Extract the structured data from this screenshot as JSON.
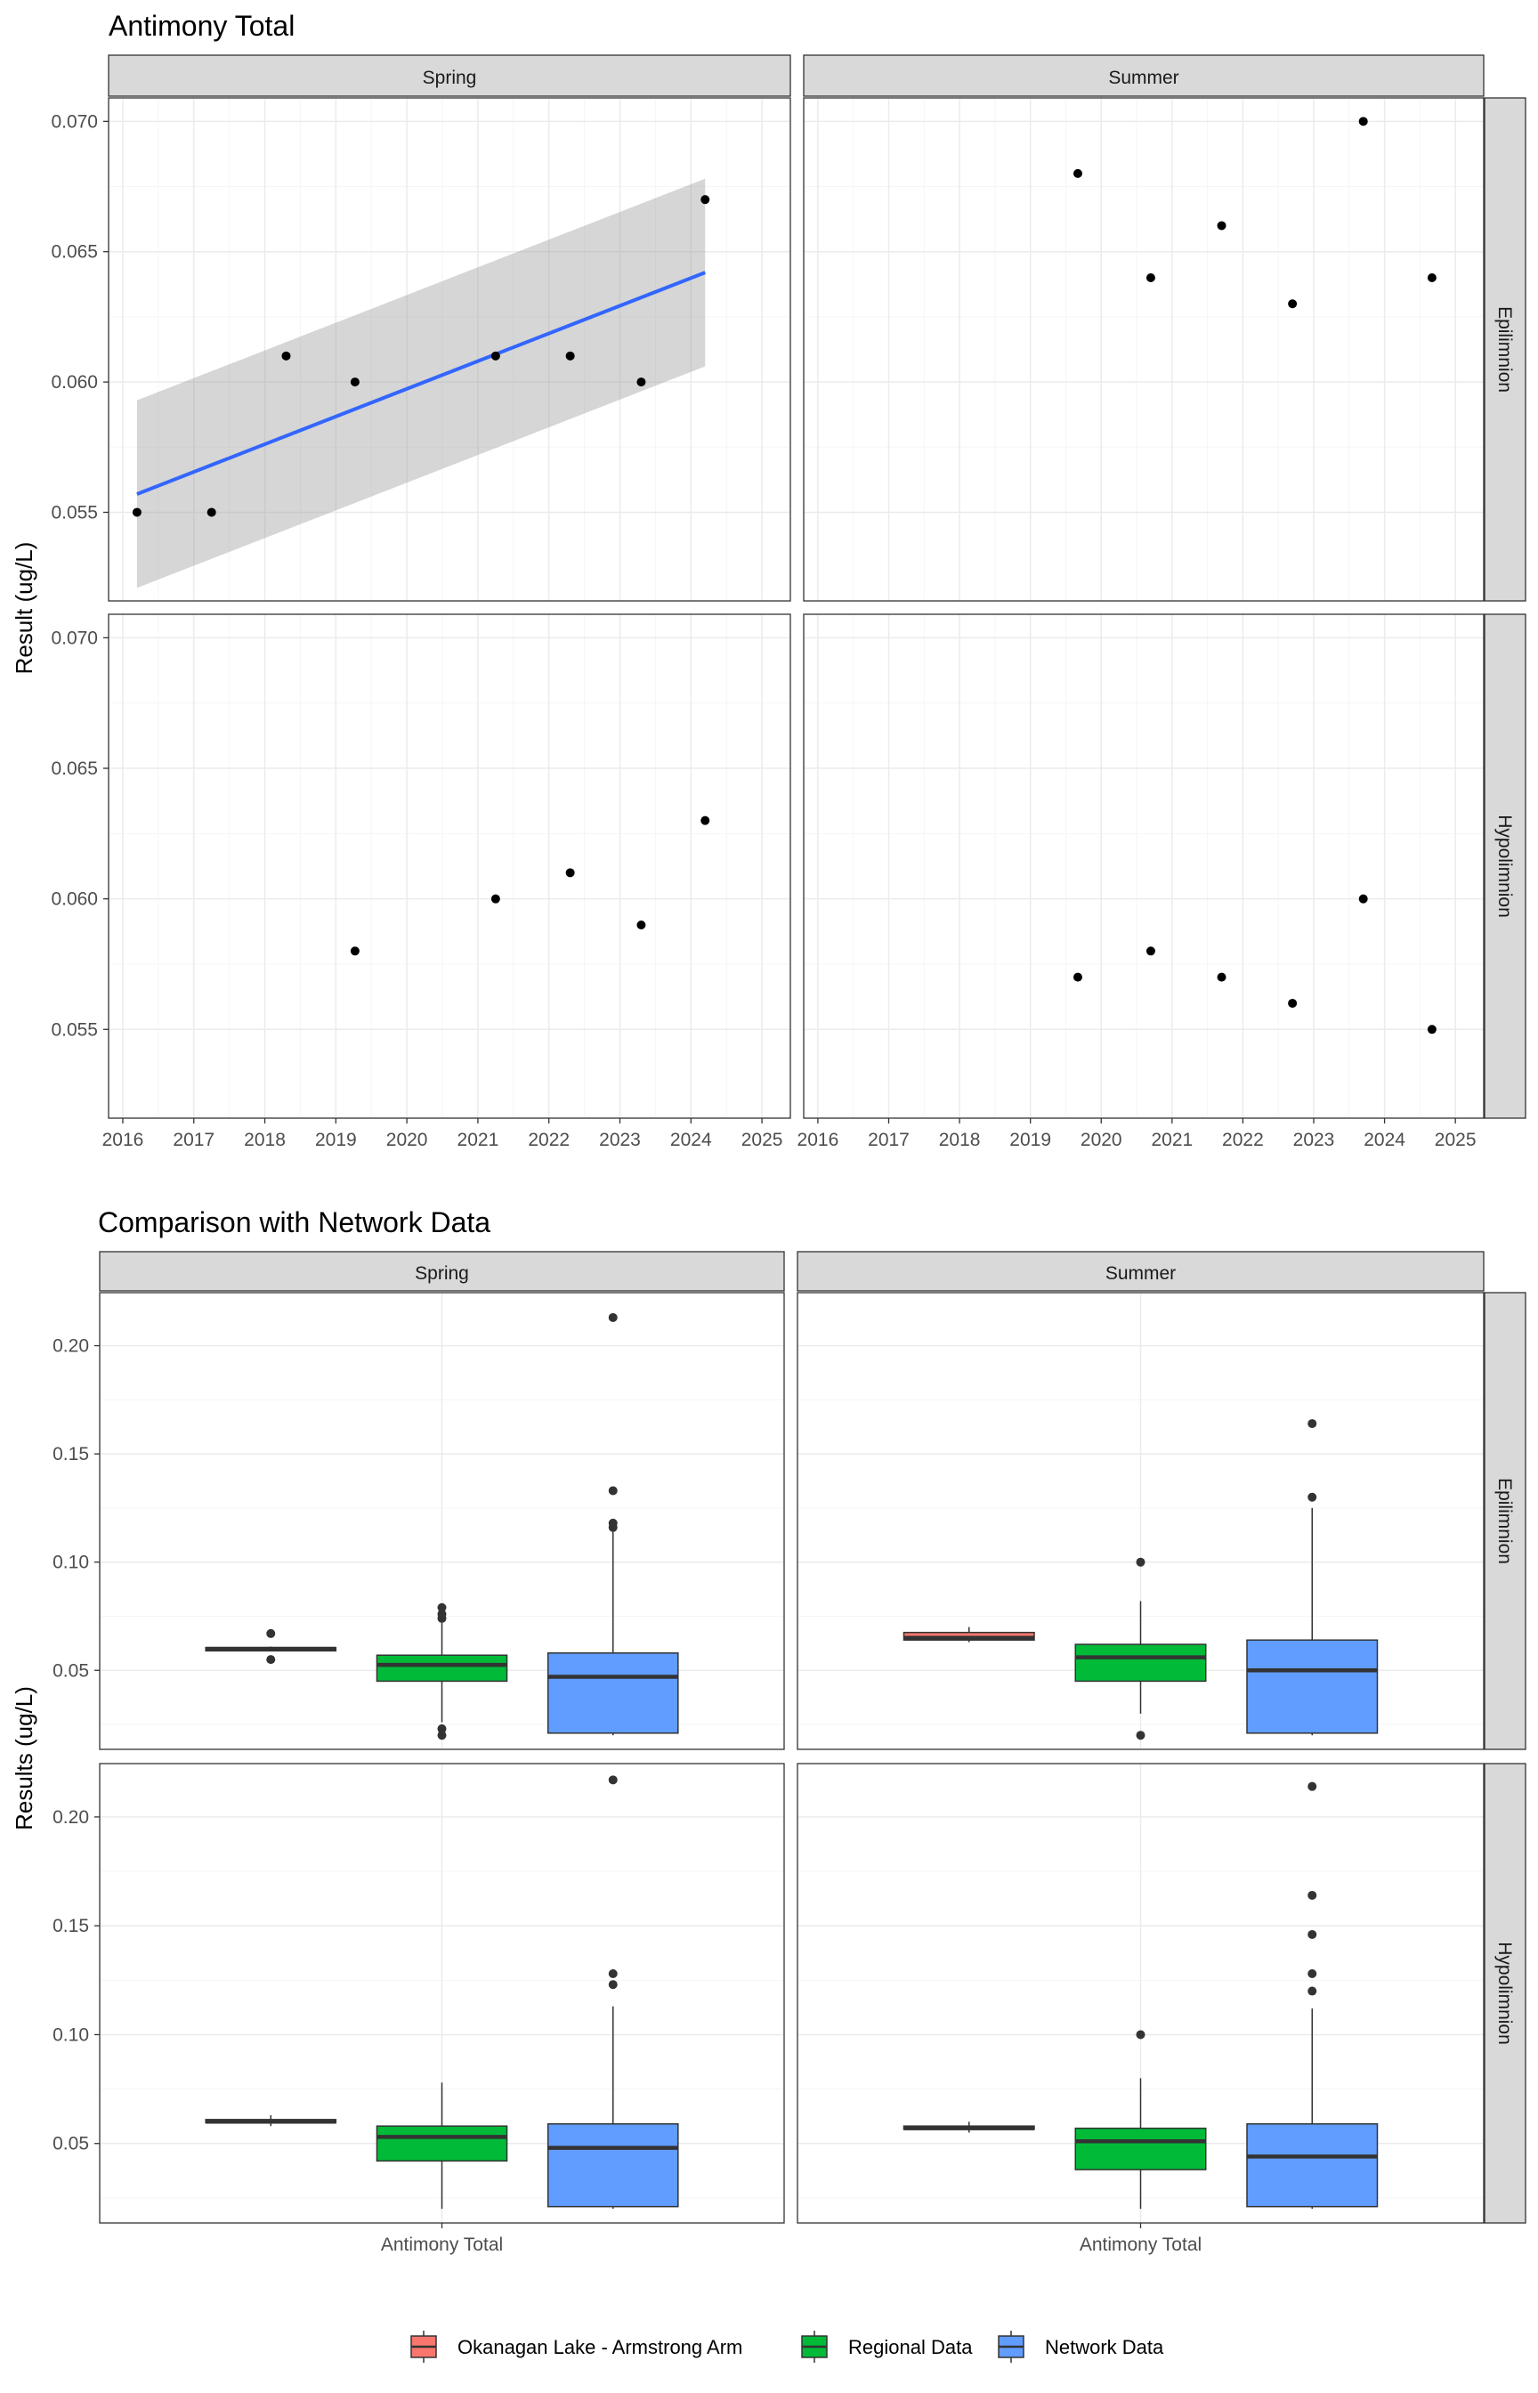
{
  "chart_data": [
    {
      "type": "scatter",
      "title": "Antimony Total",
      "xlabel": "",
      "ylabel": "Result (ug/L)",
      "xlim": [
        2015.8,
        2025.4
      ],
      "ylim": [
        0.0516,
        0.0709
      ],
      "x_ticks": [
        "2016",
        "2017",
        "2018",
        "2019",
        "2020",
        "2021",
        "2022",
        "2023",
        "2024",
        "2025"
      ],
      "y_ticks": [
        "0.055",
        "0.060",
        "0.065",
        "0.070"
      ],
      "col_facets": [
        "Spring",
        "Summer"
      ],
      "row_facets": [
        "Epilimnion",
        "Hypolimnion"
      ],
      "panels": [
        {
          "col": "Spring",
          "row": "Epilimnion",
          "points": [
            {
              "x": 2016.2,
              "y": 0.055
            },
            {
              "x": 2017.25,
              "y": 0.055
            },
            {
              "x": 2018.3,
              "y": 0.061
            },
            {
              "x": 2019.27,
              "y": 0.06
            },
            {
              "x": 2021.25,
              "y": 0.061
            },
            {
              "x": 2022.3,
              "y": 0.061
            },
            {
              "x": 2023.3,
              "y": 0.06
            },
            {
              "x": 2024.2,
              "y": 0.067
            }
          ],
          "trend": {
            "x": [
              2016.2,
              2024.2
            ],
            "y": [
              0.0557,
              0.0642
            ],
            "ci_low": [
              0.0521,
              0.0606
            ],
            "ci_high": [
              0.0593,
              0.0678
            ],
            "color": "#3366ff"
          }
        },
        {
          "col": "Summer",
          "row": "Epilimnion",
          "points": [
            {
              "x": 2019.67,
              "y": 0.068
            },
            {
              "x": 2020.7,
              "y": 0.064
            },
            {
              "x": 2021.7,
              "y": 0.066
            },
            {
              "x": 2022.7,
              "y": 0.063
            },
            {
              "x": 2023.7,
              "y": 0.07
            },
            {
              "x": 2024.67,
              "y": 0.064
            }
          ]
        },
        {
          "col": "Spring",
          "row": "Hypolimnion",
          "points": [
            {
              "x": 2019.27,
              "y": 0.058
            },
            {
              "x": 2021.25,
              "y": 0.06
            },
            {
              "x": 2022.3,
              "y": 0.061
            },
            {
              "x": 2023.3,
              "y": 0.059
            },
            {
              "x": 2024.2,
              "y": 0.063
            }
          ]
        },
        {
          "col": "Summer",
          "row": "Hypolimnion",
          "points": [
            {
              "x": 2019.67,
              "y": 0.057
            },
            {
              "x": 2020.7,
              "y": 0.058
            },
            {
              "x": 2021.7,
              "y": 0.057
            },
            {
              "x": 2022.7,
              "y": 0.056
            },
            {
              "x": 2023.7,
              "y": 0.06
            },
            {
              "x": 2024.67,
              "y": 0.055
            }
          ]
        }
      ]
    },
    {
      "type": "box",
      "title": "Comparison with Network Data",
      "xlabel": "",
      "ylabel": "Results (ug/L)",
      "ylim": [
        0.0135,
        0.2245
      ],
      "y_ticks": [
        "0.05",
        "0.10",
        "0.15",
        "0.20"
      ],
      "category": "Antimony Total",
      "col_facets": [
        "Spring",
        "Summer"
      ],
      "row_facets": [
        "Epilimnion",
        "Hypolimnion"
      ],
      "legend": {
        "position": "bottom",
        "entries": [
          {
            "name": "Okanagan Lake - Armstrong Arm",
            "color": "#f8766d"
          },
          {
            "name": "Regional Data",
            "color": "#00ba38"
          },
          {
            "name": "Network Data",
            "color": "#619cff"
          }
        ]
      },
      "panels": [
        {
          "col": "Spring",
          "row": "Epilimnion",
          "boxes": [
            {
              "series": "Okanagan Lake - Armstrong Arm",
              "q1": 0.059,
              "median": 0.06,
              "q3": 0.0605,
              "whisker_low": 0.059,
              "whisker_high": 0.061,
              "outliers": [
                0.055,
                0.067
              ]
            },
            {
              "series": "Regional Data",
              "q1": 0.045,
              "median": 0.0525,
              "q3": 0.057,
              "whisker_low": 0.026,
              "whisker_high": 0.072,
              "outliers": [
                0.02,
                0.023,
                0.074,
                0.076,
                0.079
              ]
            },
            {
              "series": "Network Data",
              "q1": 0.021,
              "median": 0.047,
              "q3": 0.058,
              "whisker_low": 0.02,
              "whisker_high": 0.114,
              "outliers": [
                0.116,
                0.118,
                0.133,
                0.213
              ]
            }
          ]
        },
        {
          "col": "Summer",
          "row": "Epilimnion",
          "boxes": [
            {
              "series": "Okanagan Lake - Armstrong Arm",
              "q1": 0.064,
              "median": 0.065,
              "q3": 0.0675,
              "whisker_low": 0.063,
              "whisker_high": 0.07,
              "outliers": []
            },
            {
              "series": "Regional Data",
              "q1": 0.045,
              "median": 0.056,
              "q3": 0.062,
              "whisker_low": 0.03,
              "whisker_high": 0.082,
              "outliers": [
                0.02,
                0.1
              ]
            },
            {
              "series": "Network Data",
              "q1": 0.021,
              "median": 0.05,
              "q3": 0.064,
              "whisker_low": 0.02,
              "whisker_high": 0.125,
              "outliers": [
                0.13,
                0.164
              ]
            }
          ]
        },
        {
          "col": "Spring",
          "row": "Hypolimnion",
          "boxes": [
            {
              "series": "Okanagan Lake - Armstrong Arm",
              "q1": 0.0595,
              "median": 0.06,
              "q3": 0.061,
              "whisker_low": 0.058,
              "whisker_high": 0.063,
              "outliers": []
            },
            {
              "series": "Regional Data",
              "q1": 0.042,
              "median": 0.053,
              "q3": 0.058,
              "whisker_low": 0.02,
              "whisker_high": 0.078,
              "outliers": []
            },
            {
              "series": "Network Data",
              "q1": 0.021,
              "median": 0.048,
              "q3": 0.059,
              "whisker_low": 0.02,
              "whisker_high": 0.113,
              "outliers": [
                0.123,
                0.128,
                0.217
              ]
            }
          ]
        },
        {
          "col": "Summer",
          "row": "Hypolimnion",
          "boxes": [
            {
              "series": "Okanagan Lake - Armstrong Arm",
              "q1": 0.0565,
              "median": 0.057,
              "q3": 0.058,
              "whisker_low": 0.055,
              "whisker_high": 0.06,
              "outliers": []
            },
            {
              "series": "Regional Data",
              "q1": 0.038,
              "median": 0.051,
              "q3": 0.057,
              "whisker_low": 0.02,
              "whisker_high": 0.08,
              "outliers": [
                0.1
              ]
            },
            {
              "series": "Network Data",
              "q1": 0.021,
              "median": 0.044,
              "q3": 0.059,
              "whisker_low": 0.02,
              "whisker_high": 0.112,
              "outliers": [
                0.12,
                0.128,
                0.146,
                0.164,
                0.214
              ]
            }
          ]
        }
      ]
    }
  ]
}
